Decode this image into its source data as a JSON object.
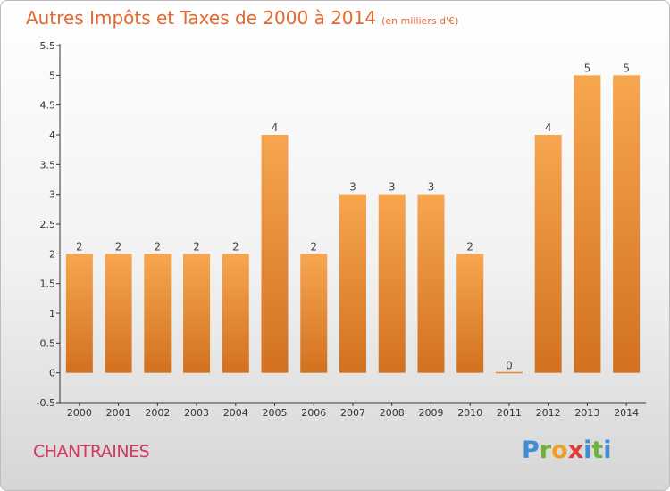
{
  "title": {
    "main": "Autres Impôts et Taxes de 2000 à 2014",
    "unit": "(en milliers d'€)"
  },
  "commune": "CHANTRAINES",
  "logo": {
    "text": "Proxiti"
  },
  "colors": {
    "bar_top": "#f7a650",
    "bar_bottom": "#d2711f",
    "title": "#e2682e",
    "commune": "#cf3a63"
  },
  "chart_data": {
    "type": "bar",
    "title": "Autres Impôts et Taxes de 2000 à 2014",
    "xlabel": "",
    "ylabel": "",
    "categories": [
      "2000",
      "2001",
      "2002",
      "2003",
      "2004",
      "2005",
      "2006",
      "2007",
      "2008",
      "2009",
      "2010",
      "2011",
      "2012",
      "2013",
      "2014"
    ],
    "values": [
      2,
      2,
      2,
      2,
      2,
      4,
      2,
      3,
      3,
      3,
      2,
      0,
      4,
      5,
      5
    ],
    "ylim": [
      -0.5,
      5.5
    ],
    "yticks": [
      "-0.5",
      "0",
      "0.5",
      "1",
      "1.5",
      "2",
      "2.5",
      "3",
      "3.5",
      "4",
      "4.5",
      "5",
      "5.5"
    ],
    "grid": false,
    "legend": "none"
  }
}
